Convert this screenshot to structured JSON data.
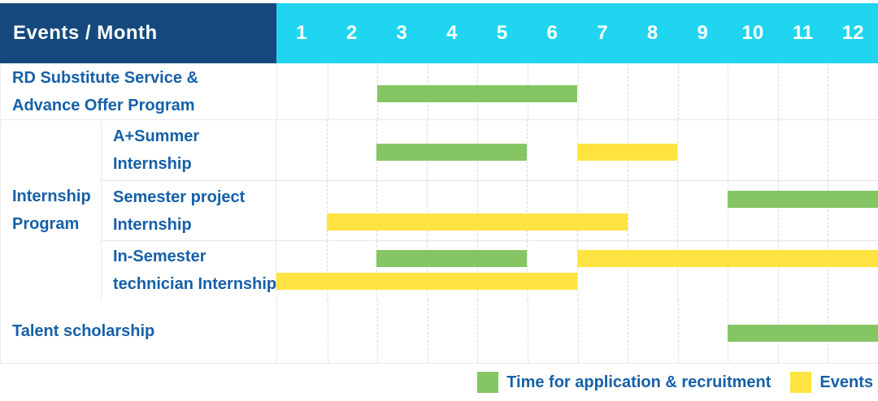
{
  "colors": {
    "header_bg": "#15497E",
    "months_bg": "#20D5EF",
    "application": "#85C563",
    "event": "#FFE340",
    "label_text": "#1660A8"
  },
  "header": {
    "title": "Events / Month",
    "months": [
      "1",
      "2",
      "3",
      "4",
      "5",
      "6",
      "7",
      "8",
      "9",
      "10",
      "11",
      "12"
    ]
  },
  "legend": {
    "items": [
      {
        "key": "application",
        "label": "Time for application & recruitment"
      },
      {
        "key": "event",
        "label": "Events"
      }
    ]
  },
  "chart_data": {
    "type": "gantt",
    "title": "Events / Month",
    "x_unit": "month",
    "x_range": [
      1,
      12
    ],
    "legend": {
      "application": "Time for application & recruitment",
      "event": "Events"
    },
    "group_label": "Internship Program",
    "group_label_lines": [
      "Internship",
      "Program"
    ],
    "rows": [
      {
        "group": "",
        "label": "RD Substitute Service & Advance Offer Program",
        "label_lines": [
          "RD Substitute Service &",
          "Advance Offer Program"
        ],
        "bars": [
          {
            "type": "application",
            "start_month": 3,
            "end_month": 6,
            "lane": "middle"
          }
        ]
      },
      {
        "group": "Internship Program",
        "label": "A+Summer Internship",
        "label_lines": [
          "A+Summer",
          "Internship"
        ],
        "bars": [
          {
            "type": "application",
            "start_month": 3,
            "end_month": 5,
            "lane": "middle"
          },
          {
            "type": "event",
            "start_month": 7,
            "end_month": 8,
            "lane": "middle"
          }
        ]
      },
      {
        "group": "Internship Program",
        "label": "Semester project Internship",
        "label_lines": [
          "Semester project",
          "Internship"
        ],
        "bars": [
          {
            "type": "application",
            "start_month": 10,
            "end_month": 12,
            "lane": "top"
          },
          {
            "type": "event",
            "start_month": 2,
            "end_month": 7,
            "lane": "bottom"
          }
        ]
      },
      {
        "group": "Internship Program",
        "label": "In-Semester technician Internship",
        "label_lines": [
          "In-Semester",
          "technician Internship"
        ],
        "bars": [
          {
            "type": "application",
            "start_month": 3,
            "end_month": 5,
            "lane": "top"
          },
          {
            "type": "event",
            "start_month": 7,
            "end_month": 12,
            "lane": "top"
          },
          {
            "type": "event",
            "start_month": 1,
            "end_month": 6,
            "lane": "bottom"
          }
        ]
      },
      {
        "group": "",
        "label": "Talent scholarship",
        "label_lines": [
          "Talent scholarship"
        ],
        "bars": [
          {
            "type": "application",
            "start_month": 10,
            "end_month": 12,
            "lane": "middle"
          }
        ]
      }
    ]
  }
}
